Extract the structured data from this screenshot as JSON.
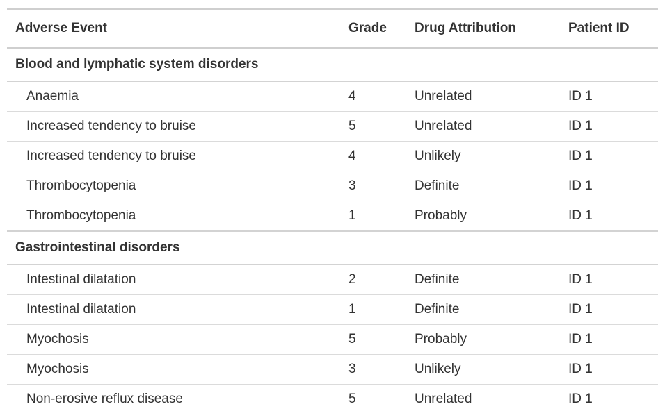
{
  "table": {
    "columns": [
      "Adverse Event",
      "Grade",
      "Drug Attribution",
      "Patient ID"
    ],
    "groups": [
      {
        "label": "Blood and lymphatic system disorders",
        "rows": [
          [
            "Anaemia",
            "4",
            "Unrelated",
            "ID 1"
          ],
          [
            "Increased tendency to bruise",
            "5",
            "Unrelated",
            "ID 1"
          ],
          [
            "Increased tendency to bruise",
            "4",
            "Unlikely",
            "ID 1"
          ],
          [
            "Thrombocytopenia",
            "3",
            "Definite",
            "ID 1"
          ],
          [
            "Thrombocytopenia",
            "1",
            "Probably",
            "ID 1"
          ]
        ]
      },
      {
        "label": "Gastrointestinal disorders",
        "rows": [
          [
            "Intestinal dilatation",
            "2",
            "Definite",
            "ID 1"
          ],
          [
            "Intestinal dilatation",
            "1",
            "Definite",
            "ID 1"
          ],
          [
            "Myochosis",
            "5",
            "Probably",
            "ID 1"
          ],
          [
            "Myochosis",
            "3",
            "Unlikely",
            "ID 1"
          ],
          [
            "Non-erosive reflux disease",
            "5",
            "Unrelated",
            "ID 1"
          ]
        ]
      }
    ]
  },
  "colors": {
    "text": "#333333",
    "border_strong": "#CFCFCF",
    "border_group": "#D3D3D3",
    "border_light": "#DBDBDB",
    "background": "#FFFFFF"
  }
}
